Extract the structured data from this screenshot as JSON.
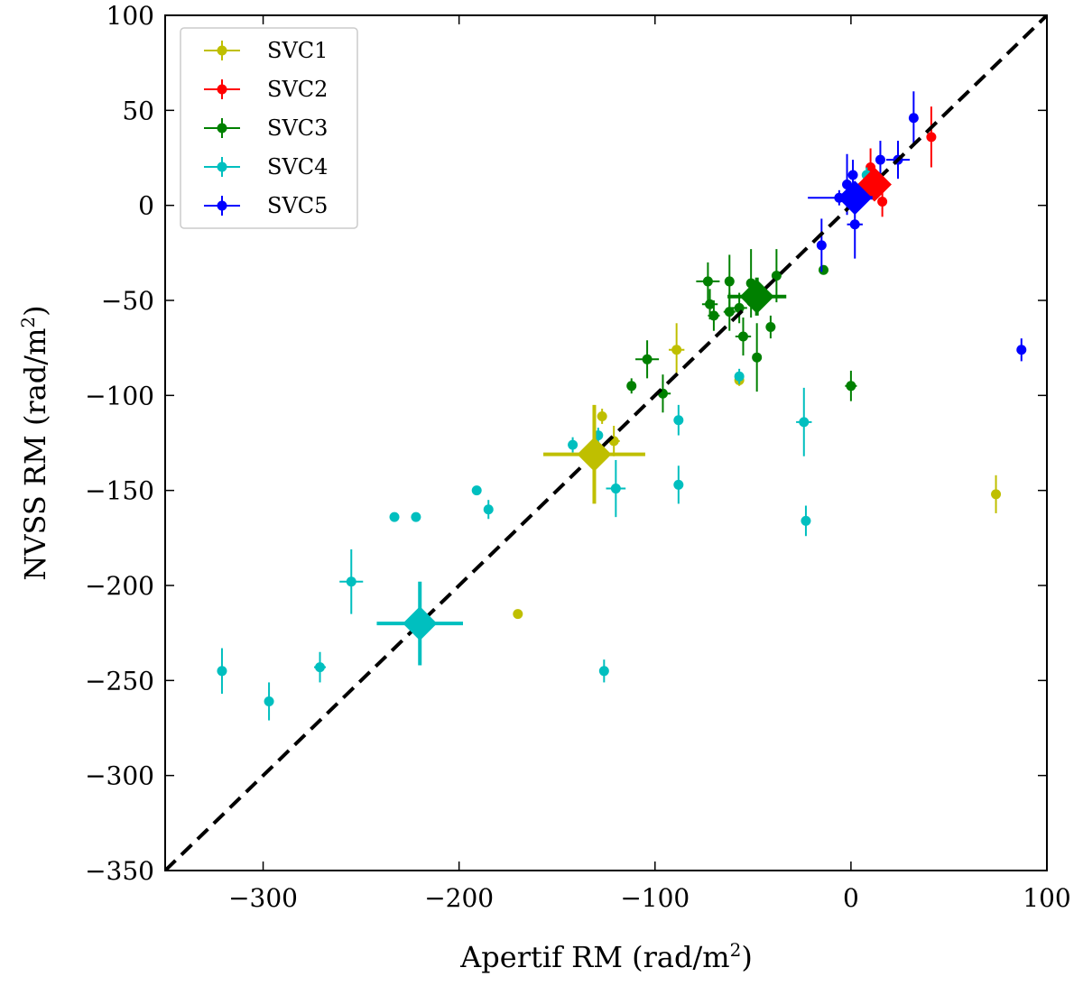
{
  "chart_data": {
    "type": "scatter",
    "xlabel": "Apertif RM (rad/m",
    "ylabel": "NVSS RM (rad/m",
    "label_superscript": "2",
    "label_close": ")",
    "xlim": [
      -350,
      100
    ],
    "ylim": [
      -350,
      100
    ],
    "xticks": [
      -300,
      -200,
      -100,
      0,
      100
    ],
    "yticks": [
      -350,
      -300,
      -250,
      -200,
      -150,
      -100,
      -50,
      0,
      50,
      100
    ],
    "xtick_labels": [
      "−300",
      "−200",
      "−100",
      "0",
      "100"
    ],
    "ytick_labels": [
      "−350",
      "−300",
      "−250",
      "−200",
      "−150",
      "−100",
      "−50",
      "0",
      "50",
      "100"
    ],
    "reference_line": {
      "style": "dashed",
      "color": "#000000",
      "from": [
        -350,
        -350
      ],
      "to": [
        100,
        100
      ]
    },
    "grid": false,
    "legend_position": "top-left",
    "series": [
      {
        "name": "SVC1",
        "color": "#bfbf00",
        "points": [
          {
            "x": -89,
            "y": -76,
            "xerr": 4,
            "yerr": 14
          },
          {
            "x": -127,
            "y": -111,
            "xerr": 2,
            "yerr": 4
          },
          {
            "x": -121,
            "y": -124,
            "xerr": 3,
            "yerr": 8
          },
          {
            "x": -57,
            "y": -92,
            "xerr": 2,
            "yerr": 3
          },
          {
            "x": -170,
            "y": -215,
            "xerr": 1,
            "yerr": 1
          },
          {
            "x": 74,
            "y": -152,
            "xerr": 2,
            "yerr": 10
          }
        ],
        "mean": {
          "x": -131,
          "y": -131,
          "xerr": 26,
          "yerr": 26
        }
      },
      {
        "name": "SVC2",
        "color": "#ff0000",
        "points": [
          {
            "x": 41,
            "y": 36,
            "xerr": 2,
            "yerr": 16
          },
          {
            "x": 16,
            "y": 2,
            "xerr": 2,
            "yerr": 8
          },
          {
            "x": 10,
            "y": 20,
            "xerr": 2,
            "yerr": 10
          }
        ],
        "mean": {
          "x": 12,
          "y": 11,
          "xerr": 5,
          "yerr": 6
        }
      },
      {
        "name": "SVC3",
        "color": "#008000",
        "points": [
          {
            "x": -73,
            "y": -40,
            "xerr": 6,
            "yerr": 10
          },
          {
            "x": -72,
            "y": -52,
            "xerr": 4,
            "yerr": 8
          },
          {
            "x": -70,
            "y": -58,
            "xerr": 3,
            "yerr": 8
          },
          {
            "x": -62,
            "y": -40,
            "xerr": 2,
            "yerr": 14
          },
          {
            "x": -62,
            "y": -56,
            "xerr": 3,
            "yerr": 10
          },
          {
            "x": -57,
            "y": -54,
            "xerr": 4,
            "yerr": 8
          },
          {
            "x": -55,
            "y": -69,
            "xerr": 4,
            "yerr": 10
          },
          {
            "x": -51,
            "y": -41,
            "xerr": 2,
            "yerr": 18
          },
          {
            "x": -48,
            "y": -80,
            "xerr": 2,
            "yerr": 18
          },
          {
            "x": -41,
            "y": -64,
            "xerr": 2,
            "yerr": 6
          },
          {
            "x": -38,
            "y": -37,
            "xerr": 2,
            "yerr": 14
          },
          {
            "x": -104,
            "y": -81,
            "xerr": 6,
            "yerr": 10
          },
          {
            "x": -112,
            "y": -95,
            "xerr": 2,
            "yerr": 4
          },
          {
            "x": -96,
            "y": -99,
            "xerr": 4,
            "yerr": 10
          },
          {
            "x": -14,
            "y": -34,
            "xerr": 1,
            "yerr": 2
          },
          {
            "x": 0,
            "y": -95,
            "xerr": 3,
            "yerr": 8
          }
        ],
        "mean": {
          "x": -48,
          "y": -48,
          "xerr": 15,
          "yerr": 10
        }
      },
      {
        "name": "SVC4",
        "color": "#00bfbf",
        "points": [
          {
            "x": -57,
            "y": -90,
            "xerr": 2,
            "yerr": 4
          },
          {
            "x": -88,
            "y": -113,
            "xerr": 2,
            "yerr": 8
          },
          {
            "x": -88,
            "y": -147,
            "xerr": 2,
            "yerr": 10
          },
          {
            "x": -129,
            "y": -121,
            "xerr": 2,
            "yerr": 4
          },
          {
            "x": -120,
            "y": -149,
            "xerr": 5,
            "yerr": 15
          },
          {
            "x": -142,
            "y": -126,
            "xerr": 2,
            "yerr": 4
          },
          {
            "x": -24,
            "y": -114,
            "xerr": 4,
            "yerr": 18
          },
          {
            "x": -23,
            "y": -166,
            "xerr": 2,
            "yerr": 8
          },
          {
            "x": -191,
            "y": -150,
            "xerr": 1,
            "yerr": 1
          },
          {
            "x": -185,
            "y": -160,
            "xerr": 2,
            "yerr": 5
          },
          {
            "x": -233,
            "y": -164,
            "xerr": 1,
            "yerr": 1
          },
          {
            "x": -222,
            "y": -164,
            "xerr": 1,
            "yerr": 1
          },
          {
            "x": -255,
            "y": -198,
            "xerr": 6,
            "yerr": 17
          },
          {
            "x": -321,
            "y": -245,
            "xerr": 2,
            "yerr": 12
          },
          {
            "x": -271,
            "y": -243,
            "xerr": 3,
            "yerr": 8
          },
          {
            "x": -297,
            "y": -261,
            "xerr": 2,
            "yerr": 10
          },
          {
            "x": -126,
            "y": -245,
            "xerr": 2,
            "yerr": 6
          },
          {
            "x": 8,
            "y": 16,
            "xerr": 2,
            "yerr": 4
          }
        ],
        "mean": {
          "x": -220,
          "y": -220,
          "xerr": 22,
          "yerr": 22
        }
      },
      {
        "name": "SVC5",
        "color": "#0000ff",
        "points": [
          {
            "x": 32,
            "y": 46,
            "xerr": 2,
            "yerr": 14
          },
          {
            "x": 15,
            "y": 24,
            "xerr": 2,
            "yerr": 10
          },
          {
            "x": 24,
            "y": 24,
            "xerr": 6,
            "yerr": 10
          },
          {
            "x": 1,
            "y": 16,
            "xerr": 2,
            "yerr": 8
          },
          {
            "x": -2,
            "y": 11,
            "xerr": 2,
            "yerr": 16
          },
          {
            "x": 2,
            "y": -10,
            "xerr": 4,
            "yerr": 18
          },
          {
            "x": -15,
            "y": -21,
            "xerr": 1,
            "yerr": 14
          },
          {
            "x": -6,
            "y": 4,
            "xerr": 16,
            "yerr": 4
          },
          {
            "x": 87,
            "y": -76,
            "xerr": 1,
            "yerr": 6
          }
        ],
        "mean": {
          "x": 2,
          "y": 4,
          "xerr": 9,
          "yerr": 5
        }
      }
    ]
  }
}
